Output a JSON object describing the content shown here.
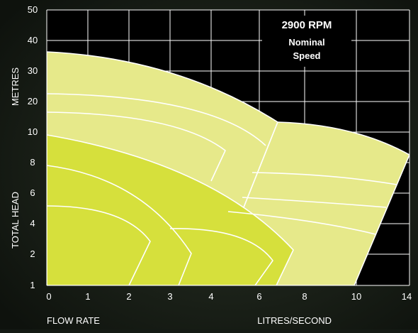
{
  "chart_data": {
    "type": "area",
    "title": "",
    "annotation": [
      "2900 RPM",
      "Nominal",
      "Speed"
    ],
    "ylabel": "TOTAL HEAD",
    "ylabel_unit": "METRES",
    "xlabel": "FLOW RATE",
    "xlabel_unit": "LITRES/SECOND",
    "x_ticks": [
      "0",
      "1",
      "2",
      "3",
      "4",
      "6",
      "8",
      "10",
      "14"
    ],
    "y_ticks": [
      "1",
      "2",
      "4",
      "6",
      "8",
      "10",
      "20",
      "30",
      "40",
      "50"
    ],
    "grid": true,
    "colors": {
      "background": "#141a14",
      "plot_bg": "#000000",
      "pale_region": "#e6e98a",
      "bright_region": "#d6e03c",
      "grid": "#ffffff",
      "text": "#ffffff"
    }
  }
}
